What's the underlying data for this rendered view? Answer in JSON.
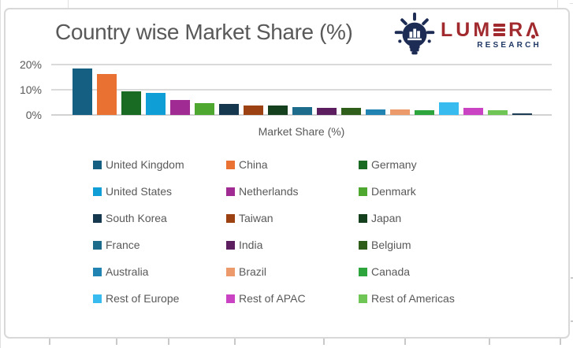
{
  "title": "Country wise Market Share (%)",
  "logo": {
    "brand": "LUMERA",
    "tagline": "RESEARCH",
    "brand_color": "#A12A2E",
    "tagline_color": "#1F3864",
    "icon": "lightbulb-bar-chart-icon",
    "icon_color": "#1D2C54"
  },
  "y_axis": {
    "ticks": [
      "20%",
      "10%",
      "0%"
    ]
  },
  "x_axis": {
    "label": "Market Share (%)"
  },
  "chart_data": {
    "type": "bar",
    "title": "Country wise Market Share (%)",
    "xlabel": "Market Share (%)",
    "ylabel": "",
    "ylim": [
      0,
      20
    ],
    "y_tick_values": [
      0,
      10,
      20
    ],
    "grid": true,
    "legend_position": "bottom",
    "value_unit": "percent",
    "series": [
      {
        "name": "United Kingdom",
        "value": 18.5,
        "color": "#156082"
      },
      {
        "name": "China",
        "value": 16.2,
        "color": "#E97132"
      },
      {
        "name": "Germany",
        "value": 9.5,
        "color": "#196B24"
      },
      {
        "name": "United States",
        "value": 8.9,
        "color": "#0F9ED5"
      },
      {
        "name": "Netherlands",
        "value": 5.8,
        "color": "#A02B93"
      },
      {
        "name": "Denmark",
        "value": 4.8,
        "color": "#4EA72E"
      },
      {
        "name": "South Korea",
        "value": 4.3,
        "color": "#16384E"
      },
      {
        "name": "Taiwan",
        "value": 3.9,
        "color": "#9C4212"
      },
      {
        "name": "Japan",
        "value": 3.6,
        "color": "#15401D"
      },
      {
        "name": "France",
        "value": 3.2,
        "color": "#1E6C8C"
      },
      {
        "name": "India",
        "value": 2.8,
        "color": "#5C1E5E"
      },
      {
        "name": "Belgium",
        "value": 2.7,
        "color": "#2F5E1B"
      },
      {
        "name": "Australia",
        "value": 2.3,
        "color": "#2183B2"
      },
      {
        "name": "Brazil",
        "value": 2.1,
        "color": "#EC9A6B"
      },
      {
        "name": "Canada",
        "value": 1.8,
        "color": "#2DA43C"
      },
      {
        "name": "Rest of Europe",
        "value": 5.1,
        "color": "#38BBEE"
      },
      {
        "name": "Rest of APAC",
        "value": 2.9,
        "color": "#C943C3"
      },
      {
        "name": "Rest of Americas",
        "value": 1.9,
        "color": "#70C654"
      },
      {
        "name": "",
        "value": 0.6,
        "color": "#1B3C52",
        "legend_hidden": true
      }
    ]
  }
}
